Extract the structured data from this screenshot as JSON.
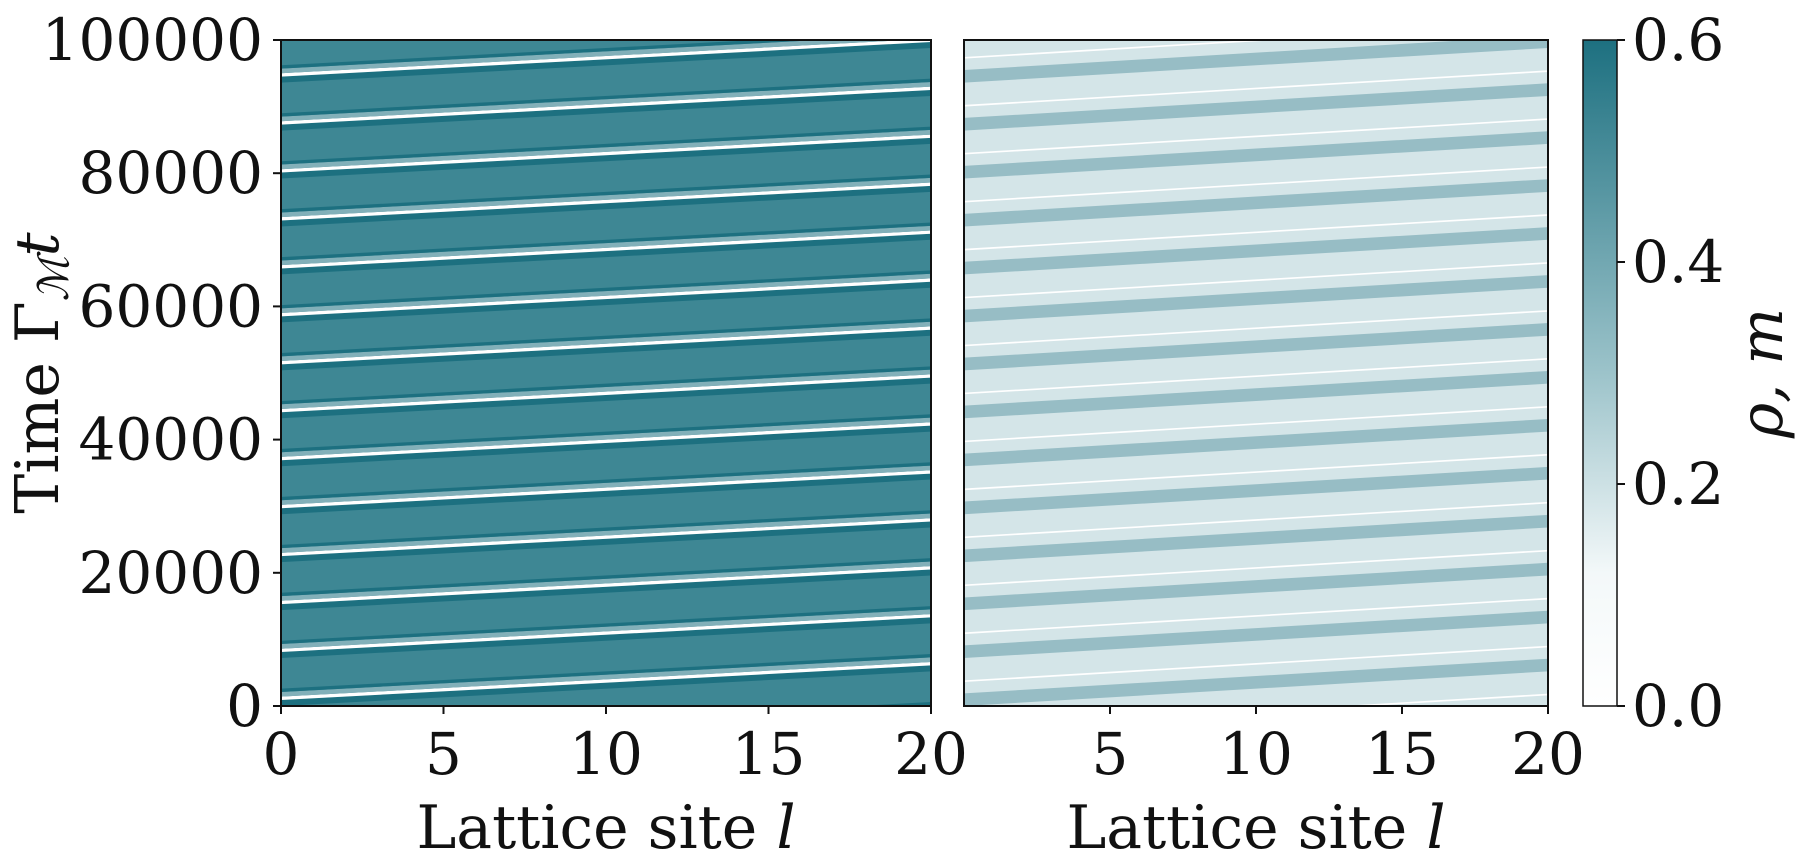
{
  "chart_data": [
    {
      "type": "heatmap",
      "panel": "left",
      "xlabel": "Lattice site",
      "xlabel_var": "l",
      "ylabel": "Time Γ",
      "ylabel_sub": "ℳ",
      "ylabel_var": "t",
      "xlim": [
        0,
        20
      ],
      "ylim": [
        0,
        100000
      ],
      "xticks": [
        "0",
        "5",
        "10",
        "15",
        "20"
      ],
      "yticks": [
        "0",
        "20000",
        "40000",
        "60000",
        "80000",
        "100000"
      ],
      "pattern": "tilted periodic stripes",
      "stripe_period_t": 7200,
      "stripe_slope_t_per_site": 260,
      "base_value": 0.5,
      "dark_value": 0.6,
      "light_value": 0.0
    },
    {
      "type": "heatmap",
      "panel": "right",
      "xlabel": "Lattice site",
      "xlabel_var": "l",
      "xlim": [
        0,
        20
      ],
      "ylim": [
        0,
        100000
      ],
      "xticks": [
        "5",
        "10",
        "15",
        "20"
      ],
      "pattern": "tilted periodic stripes",
      "stripe_period_t": 7200,
      "stripe_slope_t_per_site": 260,
      "base_value": 0.14,
      "band_value": 0.24,
      "light_value": 0.0
    }
  ],
  "colorbar": {
    "label": "ρ, m",
    "ticks": [
      "0.0",
      "0.2",
      "0.4",
      "0.6"
    ],
    "tick_values": [
      0.0,
      0.2,
      0.4,
      0.6
    ],
    "range": [
      0.0,
      0.6
    ],
    "color_low": "#ffffff",
    "color_high": "#1d7080"
  }
}
